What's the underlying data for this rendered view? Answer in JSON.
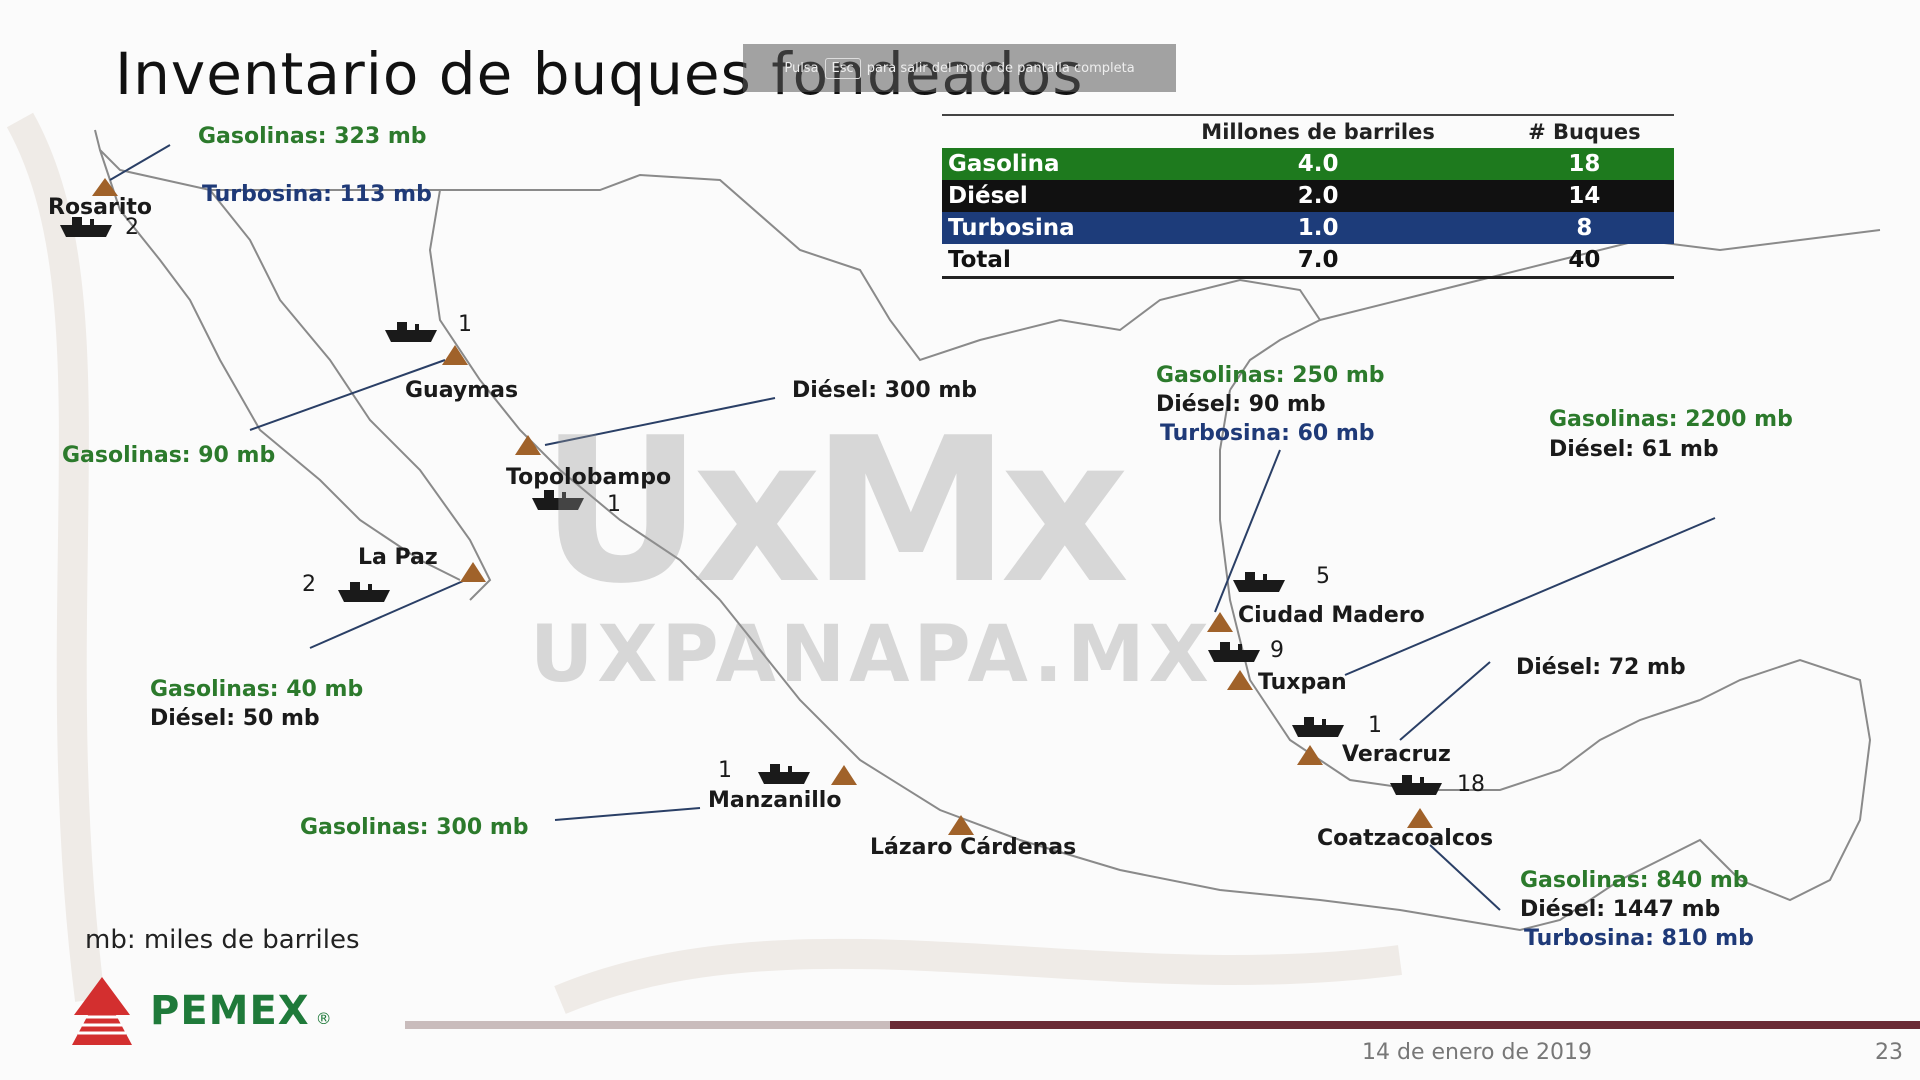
{
  "title": "Inventario de buques fondeados",
  "esc_banner": {
    "text_before": "Pulsa",
    "key": "Esc",
    "text_after": "para salir del modo de pantalla completa"
  },
  "table": {
    "headers": [
      "",
      "Millones de barriles",
      "# Buques"
    ],
    "rows": [
      {
        "name": "Gasolina",
        "barrels": "4.0",
        "ships": "18",
        "color": "#1e7a1e"
      },
      {
        "name": "Diésel",
        "barrels": "2.0",
        "ships": "14",
        "color": "#111111"
      },
      {
        "name": "Turbosina",
        "barrels": "1.0",
        "ships": "8",
        "color": "#1d3c7a"
      },
      {
        "name": "Total",
        "barrels": "7.0",
        "ships": "40"
      }
    ]
  },
  "ports": {
    "rosarito": {
      "name": "Rosarito",
      "ships": "2"
    },
    "guaymas": {
      "name": "Guaymas",
      "ships": "1"
    },
    "topolobampo": {
      "name": "Topolobampo",
      "ships": "1"
    },
    "lapaz": {
      "name": "La Paz",
      "ships": "2"
    },
    "manzanillo": {
      "name": "Manzanillo",
      "ships": "1"
    },
    "lazaro": {
      "name": "Lázaro Cárdenas"
    },
    "madero": {
      "name": "Ciudad Madero",
      "ships": "5"
    },
    "tuxpan": {
      "name": "Tuxpan",
      "ships": "9"
    },
    "veracruz": {
      "name": "Veracruz",
      "ships": "1"
    },
    "coatza": {
      "name": "Coatzacoalcos",
      "ships": "18"
    }
  },
  "callouts": {
    "rosarito_gas": "Gasolinas: 323 mb",
    "rosarito_tur": "Turbosina: 113 mb",
    "guaymas_gas": "Gasolinas: 90 mb",
    "topolobampo_die": "Diésel: 300 mb",
    "lapaz_gas": "Gasolinas: 40 mb",
    "lapaz_die": "Diésel: 50 mb",
    "manzanillo_gas": "Gasolinas: 300 mb",
    "madero_gas": "Gasolinas: 250 mb",
    "madero_die": "Diésel: 90 mb",
    "madero_tur": "Turbosina: 60 mb",
    "tuxpan_gas": "Gasolinas: 2200 mb",
    "tuxpan_die": "Diésel: 61 mb",
    "veracruz_die": "Diésel: 72 mb",
    "coatza_gas": "Gasolinas: 840 mb",
    "coatza_die": "Diésel: 1447 mb",
    "coatza_tur": "Turbosina: 810 mb"
  },
  "note": "mb: miles de barriles",
  "logo": {
    "text": "PEMEX",
    "reg": "®"
  },
  "watermark": {
    "big": "UxMx",
    "url": "UXPANAPA.MX"
  },
  "footer": {
    "date": "14 de enero de 2019",
    "page": "23"
  },
  "colors": {
    "gasolina": "#2c7a2c",
    "turbosina": "#1f3a78",
    "diesel": "#1a1a1a",
    "marker": "#a0622a"
  }
}
